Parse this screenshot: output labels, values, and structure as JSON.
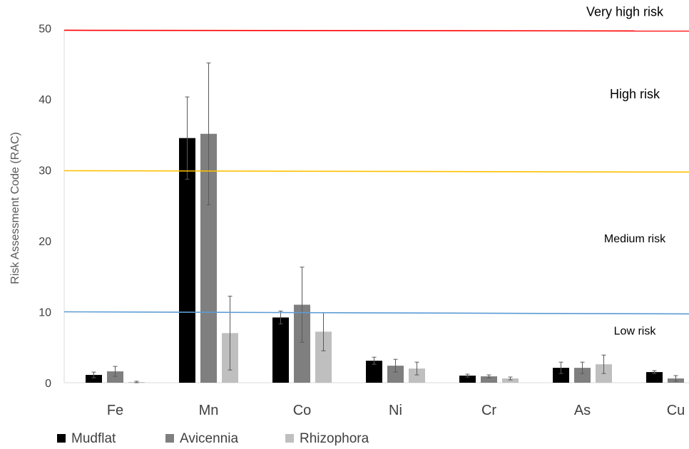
{
  "chart_data": {
    "type": "bar",
    "title": "",
    "xlabel": "",
    "ylabel": "Risk Assessment Code (RAC)",
    "ylim": [
      0,
      50
    ],
    "yticks": [
      "0",
      "10",
      "20",
      "30",
      "40",
      "50"
    ],
    "grid": false,
    "legend_position": "bottom-left",
    "categories": [
      "Fe",
      "Mn",
      "Co",
      "Ni",
      "Cr",
      "As",
      "Cu"
    ],
    "series": [
      {
        "name": "Mudflat",
        "color": "#000000",
        "values": [
          1.1,
          34.5,
          9.2,
          3.1,
          1.0,
          2.1,
          1.5
        ],
        "errors": [
          0.4,
          5.8,
          0.9,
          0.5,
          0.2,
          0.8,
          0.2
        ]
      },
      {
        "name": "Avicennia",
        "color": "#7f7f7f",
        "values": [
          1.6,
          35.1,
          11.0,
          2.4,
          0.9,
          2.1,
          0.6
        ],
        "errors": [
          0.7,
          10.0,
          5.3,
          0.9,
          0.2,
          0.8,
          0.4
        ]
      },
      {
        "name": "Rhizophora",
        "color": "#bfbfbf",
        "values": [
          0.1,
          7.0,
          7.2,
          2.0,
          0.6,
          2.6,
          0.5
        ],
        "errors": [
          0.1,
          5.2,
          2.7,
          0.9,
          0.2,
          1.3,
          0.3
        ]
      }
    ],
    "reference_lines": [
      {
        "y_start": 49.7,
        "y_end": 49.6,
        "color": "#ff0000"
      },
      {
        "y_start": 29.9,
        "y_end": 29.7,
        "color": "#ffc000"
      },
      {
        "y_start": 10.0,
        "y_end": 9.7,
        "color": "#5b9bd5"
      }
    ],
    "zone_labels": [
      {
        "text": "Very high risk",
        "y": 52.3
      },
      {
        "text": "High risk",
        "y": 40.7
      },
      {
        "text": "Medium risk",
        "y": 20.4
      },
      {
        "text": "Low risk",
        "y": 7.4
      }
    ]
  }
}
